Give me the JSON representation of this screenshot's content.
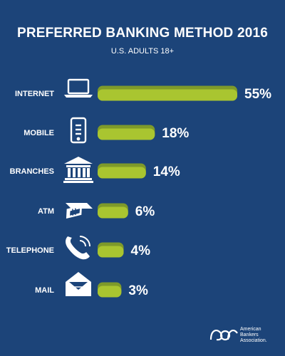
{
  "colors": {
    "background": "#1c4479",
    "bar_fill": "#a9c530",
    "bar_shade": "#7e9a2a",
    "text": "#ffffff"
  },
  "chart_data": {
    "type": "bar",
    "orientation": "horizontal",
    "title": "PREFERRED BANKING METHOD 2016",
    "subtitle": "U.S. ADULTS 18+",
    "categories": [
      "INTERNET",
      "MOBILE",
      "BRANCHES",
      "ATM",
      "TELEPHONE",
      "MAIL"
    ],
    "values": [
      55,
      18,
      14,
      6,
      4,
      3
    ],
    "value_labels": [
      "55%",
      "18%",
      "14%",
      "6%",
      "4%",
      "3%"
    ],
    "icons": [
      "laptop-icon",
      "mobile-phone-icon",
      "bank-building-icon",
      "atm-card-icon",
      "telephone-icon",
      "mail-envelope-icon"
    ],
    "xlim": [
      0,
      55
    ],
    "grid": false,
    "legend": "none"
  },
  "logo": {
    "lines": [
      "American",
      "Bankers",
      "Association."
    ]
  }
}
